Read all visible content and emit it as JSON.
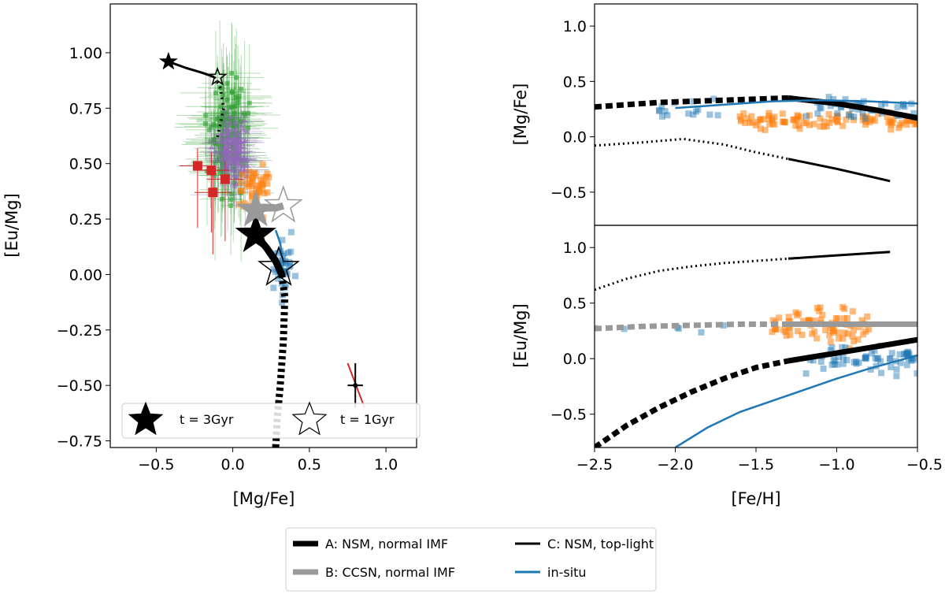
{
  "legend": {
    "items": [
      {
        "label": "A: NSM, normal IMF",
        "color": "#000000"
      },
      {
        "label": "B: CCSN, normal IMF",
        "color": "#999999"
      },
      {
        "label": "C: NSM, top-light",
        "color": "#000000"
      },
      {
        "label": "in-situ",
        "color": "#1f77b4"
      }
    ]
  },
  "colors": {
    "green": "#2ca02c",
    "purple": "#9467bd",
    "orange": "#ff7f0e",
    "blue": "#1f77b4",
    "red": "#d62728",
    "grey": "#999999",
    "black": "#000000"
  },
  "chart_data": [
    {
      "type": "scatter",
      "panel": "left",
      "xlabel": "[Mg/Fe]",
      "ylabel": "[Eu/Mg]",
      "xlim": [
        -0.8,
        1.2
      ],
      "ylim": [
        -0.78,
        1.22
      ],
      "xticks": [
        -0.5,
        0.0,
        0.5,
        1.0
      ],
      "xtick_labels": [
        "−0.5",
        "0.0",
        "0.5",
        "1.0"
      ],
      "yticks": [
        -0.75,
        -0.5,
        -0.25,
        0.0,
        0.25,
        0.5,
        0.75,
        1.0
      ],
      "ytick_labels": [
        "−0.75",
        "−0.50",
        "−0.25",
        "0.00",
        "0.25",
        "0.50",
        "0.75",
        "1.00"
      ],
      "star_legend": {
        "filled_label": "t = 3Gyr",
        "open_label": "t = 1Gyr"
      },
      "series": [
        {
          "name": "red points",
          "color": "#d62728",
          "x": [
            -0.23,
            -0.14,
            -0.13,
            -0.05
          ],
          "y": [
            0.49,
            0.47,
            0.37,
            0.43
          ]
        },
        {
          "name": "A: NSM, normal IMF",
          "color": "#000000",
          "x": [
            0.15,
            0.22,
            0.28,
            0.32,
            0.34,
            0.33,
            0.31,
            0.29,
            0.28
          ],
          "y": [
            0.18,
            0.12,
            0.06,
            0.0,
            -0.1,
            -0.3,
            -0.5,
            -0.65,
            -0.78
          ]
        },
        {
          "name": "B: CCSN, normal IMF",
          "color": "#999999",
          "x": [
            0.15,
            0.22,
            0.28,
            0.33
          ],
          "y": [
            0.29,
            0.3,
            0.3,
            0.31
          ]
        },
        {
          "name": "C: NSM, top-light",
          "color": "#000000",
          "x": [
            -0.42,
            -0.3,
            -0.2,
            -0.12,
            -0.08,
            -0.06,
            -0.08,
            -0.1
          ],
          "y": [
            0.96,
            0.93,
            0.91,
            0.89,
            0.84,
            0.75,
            0.68,
            0.62
          ]
        },
        {
          "name": "in-situ",
          "color": "#1f77b4",
          "x": [
            0.28,
            0.31,
            0.33
          ],
          "y": [
            0.2,
            0.14,
            0.05
          ]
        }
      ],
      "stars_3gyr": [
        {
          "x": 0.15,
          "y": 0.18,
          "color": "#000000"
        },
        {
          "x": 0.15,
          "y": 0.29,
          "color": "#999999"
        },
        {
          "x": -0.42,
          "y": 0.96,
          "color": "#000000"
        }
      ],
      "stars_1gyr": [
        {
          "x": 0.3,
          "y": 0.03,
          "color": "#000000"
        },
        {
          "x": 0.33,
          "y": 0.31,
          "color": "#999999"
        },
        {
          "x": -0.1,
          "y": 0.89,
          "color": "#000000"
        }
      ],
      "errorbar_sample": {
        "x": 0.8,
        "y": -0.5
      }
    },
    {
      "type": "line",
      "panel": "right-top",
      "ylabel": "[Mg/Fe]",
      "xlim": [
        -2.5,
        -0.5
      ],
      "ylim": [
        -0.8,
        1.2
      ],
      "yticks": [
        -0.5,
        0.0,
        0.5,
        1.0
      ],
      "ytick_labels": [
        "−0.5",
        "0.0",
        "0.5",
        "1.0"
      ],
      "series": [
        {
          "name": "A: NSM, normal IMF",
          "color": "#000000",
          "x": [
            -2.5,
            -2.1,
            -1.7,
            -1.5,
            -1.3,
            -1.0,
            -0.75,
            -0.5
          ],
          "y": [
            0.27,
            0.31,
            0.33,
            0.34,
            0.35,
            0.3,
            0.24,
            0.17
          ]
        },
        {
          "name": "C: NSM, top-light",
          "color": "#000000",
          "x": [
            -2.5,
            -2.2,
            -1.95,
            -1.7,
            -1.5,
            -1.3,
            -1.0,
            -0.67
          ],
          "y": [
            -0.08,
            -0.05,
            -0.02,
            -0.07,
            -0.14,
            -0.2,
            -0.29,
            -0.4
          ]
        },
        {
          "name": "in-situ",
          "color": "#1f77b4",
          "x": [
            -2.0,
            -1.7,
            -1.4,
            -1.1,
            -0.8,
            -0.5
          ],
          "y": [
            0.26,
            0.29,
            0.32,
            0.33,
            0.32,
            0.3
          ]
        }
      ]
    },
    {
      "type": "line",
      "panel": "right-bottom",
      "xlabel": "[Fe/H]",
      "ylabel": "[Eu/Mg]",
      "xlim": [
        -2.5,
        -0.5
      ],
      "ylim": [
        -0.8,
        1.2
      ],
      "xticks": [
        -2.5,
        -2.0,
        -1.5,
        -1.0,
        -0.5
      ],
      "xtick_labels": [
        "−2.5",
        "−2.0",
        "−1.5",
        "−1.0",
        "−0.5"
      ],
      "yticks": [
        -0.5,
        0.0,
        0.5,
        1.0
      ],
      "ytick_labels": [
        "−0.5",
        "0.0",
        "0.5",
        "1.0"
      ],
      "series": [
        {
          "name": "A: NSM, normal IMF",
          "color": "#000000",
          "x": [
            -2.5,
            -2.3,
            -2.1,
            -1.9,
            -1.7,
            -1.5,
            -1.3,
            -1.0,
            -0.75,
            -0.5
          ],
          "y": [
            -0.8,
            -0.6,
            -0.44,
            -0.3,
            -0.18,
            -0.08,
            -0.02,
            0.05,
            0.11,
            0.17
          ]
        },
        {
          "name": "B: CCSN, normal IMF",
          "color": "#999999",
          "x": [
            -2.5,
            -2.2,
            -1.9,
            -1.6,
            -1.3,
            -1.0,
            -0.5
          ],
          "y": [
            0.27,
            0.29,
            0.3,
            0.31,
            0.31,
            0.31,
            0.31
          ]
        },
        {
          "name": "C: NSM, top-light",
          "color": "#000000",
          "x": [
            -2.5,
            -2.3,
            -2.1,
            -1.9,
            -1.7,
            -1.5,
            -1.3,
            -1.0,
            -0.67
          ],
          "y": [
            0.62,
            0.72,
            0.79,
            0.83,
            0.86,
            0.88,
            0.9,
            0.93,
            0.96
          ]
        },
        {
          "name": "in-situ",
          "color": "#1f77b4",
          "x": [
            -2.0,
            -1.8,
            -1.6,
            -1.4,
            -1.2,
            -1.0,
            -0.8,
            -0.5
          ],
          "y": [
            -0.8,
            -0.62,
            -0.48,
            -0.38,
            -0.28,
            -0.18,
            -0.09,
            0.03
          ]
        }
      ]
    }
  ]
}
